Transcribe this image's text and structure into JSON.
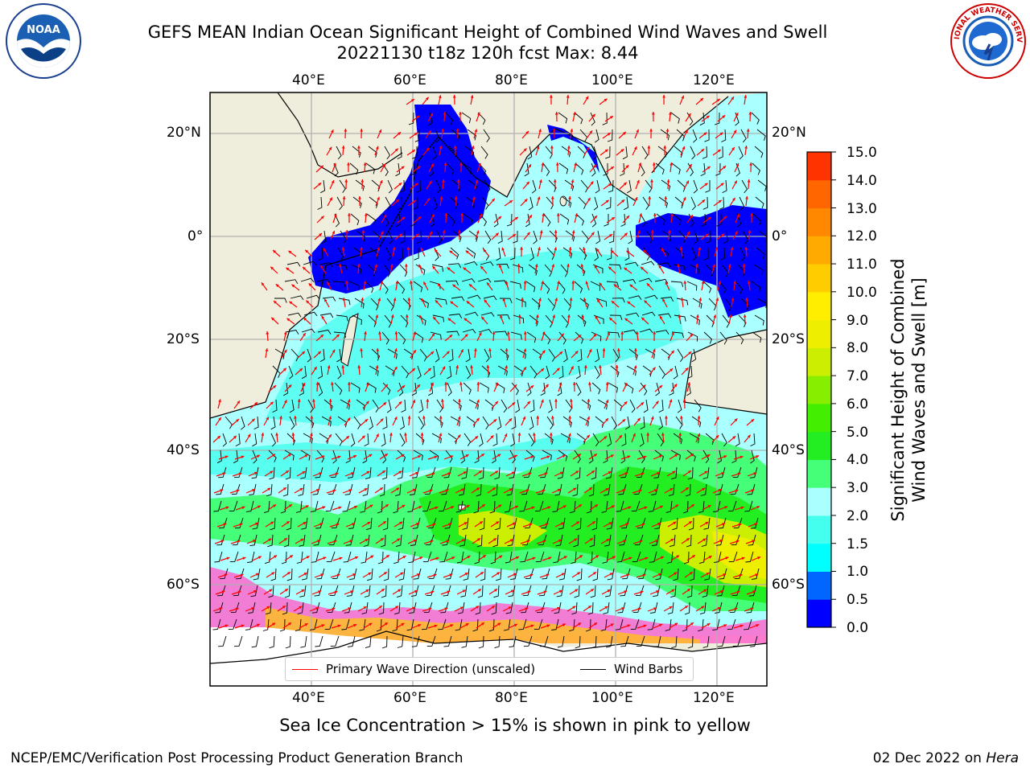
{
  "title": {
    "line1": "GEFS MEAN Indian Ocean Significant Height of Combined Wind Waves and Swell",
    "line2": "20221130 t18z 120h fcst   Max: 8.44"
  },
  "logos": {
    "left": {
      "icon": "noaa-logo-icon",
      "text": "NOAA"
    },
    "right": {
      "icon": "nws-logo-icon",
      "ring_text": "NATIONAL WEATHER SERVICE"
    }
  },
  "map": {
    "lon_ticks_top": [
      "40°E",
      "60°E",
      "80°E",
      "100°E",
      "120°E"
    ],
    "lon_ticks_bottom": [
      "40°E",
      "60°E",
      "80°E",
      "100°E",
      "120°E"
    ],
    "lat_ticks_left": [
      "20°N",
      "0°",
      "20°S",
      "40°S",
      "60°S"
    ],
    "lat_ticks_right": [
      "20°N",
      "0°",
      "20°S",
      "40°S",
      "60°S"
    ],
    "colors": {
      "land": "#efeedd",
      "ice_free_ocean": "#ffffff",
      "wave_arrow": "#ff0000",
      "wind_barb": "#000000",
      "sea_ice": "#ff66cc"
    }
  },
  "colorbar": {
    "label_line1": "Significant Height of Combined",
    "label_line2": "Wind Waves and Swell [m]",
    "ticks": [
      "15.0",
      "14.0",
      "13.0",
      "12.0",
      "11.0",
      "10.0",
      "9.0",
      "8.0",
      "7.0",
      "6.0",
      "5.0",
      "4.0",
      "3.0",
      "2.0",
      "1.5",
      "1.0",
      "0.5",
      "0.0"
    ],
    "colors": [
      "#0000ff",
      "#0066ff",
      "#00ffff",
      "#44ffee",
      "#aaffff",
      "#44ff77",
      "#22ee22",
      "#44ee00",
      "#88ee00",
      "#ccee00",
      "#eeee00",
      "#ffee00",
      "#ffcc00",
      "#ffaa00",
      "#ff8800",
      "#ff6600",
      "#ff3300"
    ]
  },
  "legend": {
    "wave_label": "Primary Wave Direction (unscaled)",
    "wind_label": "Wind Barbs"
  },
  "note": "Sea Ice Concentration > 15% is shown in pink to yellow",
  "footer": {
    "left": "NCEP/EMC/Verification Post Processing Product Generation Branch",
    "date": "02 Dec 2022 on ",
    "host": "Hera"
  }
}
